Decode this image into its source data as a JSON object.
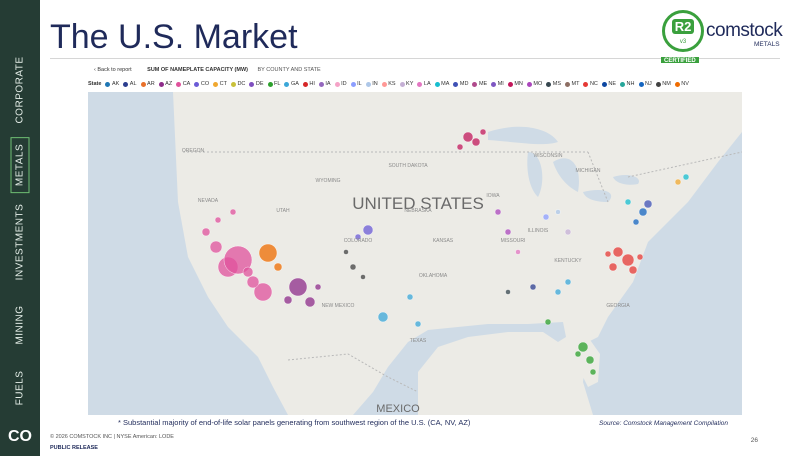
{
  "sidebar": {
    "items": [
      "CORPORATE",
      "METALS",
      "INVESTMENTS",
      "MINING",
      "FUELS"
    ],
    "active": "METALS",
    "logo": "CO"
  },
  "header": {
    "title": "The U.S. Market",
    "badge": {
      "mark": "R2",
      "version": "v3",
      "caption": "CERTIFIED"
    },
    "brand": "comstock",
    "brand_sub": "METALS"
  },
  "panel": {
    "back": "Back to report",
    "heading": "SUM OF NAMEPLATE CAPACITY (MW)",
    "subheading": "BY COUNTY AND STATE",
    "legend_title": "State",
    "states": [
      {
        "name": "AK",
        "color": "#1f77b4"
      },
      {
        "name": "AL",
        "color": "#2c3e8f"
      },
      {
        "name": "AR",
        "color": "#e8702a"
      },
      {
        "name": "AZ",
        "color": "#8e2c8a"
      },
      {
        "name": "CA",
        "color": "#e0529c"
      },
      {
        "name": "CO",
        "color": "#6b5bd6"
      },
      {
        "name": "CT",
        "color": "#f0a830"
      },
      {
        "name": "DC",
        "color": "#c9c13a"
      },
      {
        "name": "DE",
        "color": "#7f4fbf"
      },
      {
        "name": "FL",
        "color": "#2ca02c"
      },
      {
        "name": "GA",
        "color": "#3ba7d8"
      },
      {
        "name": "HI",
        "color": "#d62728"
      },
      {
        "name": "IA",
        "color": "#9467bd"
      },
      {
        "name": "ID",
        "color": "#f5a3c7"
      },
      {
        "name": "IL",
        "color": "#8c9eff"
      },
      {
        "name": "IN",
        "color": "#aec7e8"
      },
      {
        "name": "KS",
        "color": "#ff9896"
      },
      {
        "name": "KY",
        "color": "#c5b0d5"
      },
      {
        "name": "LA",
        "color": "#e377c2"
      },
      {
        "name": "MA",
        "color": "#17becf"
      },
      {
        "name": "MD",
        "color": "#3f51b5"
      },
      {
        "name": "ME",
        "color": "#b04a8c"
      },
      {
        "name": "MI",
        "color": "#7e57c2"
      },
      {
        "name": "MN",
        "color": "#c2185b"
      },
      {
        "name": "MO",
        "color": "#ab47bc"
      },
      {
        "name": "MS",
        "color": "#37474f"
      },
      {
        "name": "MT",
        "color": "#8d6e63"
      },
      {
        "name": "NC",
        "color": "#e53935"
      },
      {
        "name": "NE",
        "color": "#0d47a1"
      },
      {
        "name": "NH",
        "color": "#26a69a"
      },
      {
        "name": "NJ",
        "color": "#1565c0"
      },
      {
        "name": "NM",
        "color": "#424242"
      },
      {
        "name": "NV",
        "color": "#ef6c00"
      }
    ],
    "map_labels": {
      "country": "UNITED STATES",
      "south": "MEXICO",
      "regions": [
        "NEVADA",
        "UTAH",
        "COLORADO",
        "KANSAS",
        "MISSOURI",
        "OKLAHOMA",
        "NEW MEXICO",
        "TEXAS",
        "NEBRASKA",
        "WYOMING",
        "SOUTH DAKOTA",
        "IOWA",
        "ILLINOIS",
        "KENTUCKY",
        "GEORGIA",
        "WISCONSIN",
        "MICHIGAN",
        "OREGON"
      ]
    }
  },
  "footnote": "* Substantial majority of end-of-life solar panels generating from southwest region of the U.S. (CA, NV, AZ)",
  "source": "Source: Comstock Management Compilation",
  "footer": {
    "copyright": "© 2026 COMSTOCK INC | NYSE American: LODE",
    "release": "PUBLIC RELEASE",
    "page": "26"
  }
}
